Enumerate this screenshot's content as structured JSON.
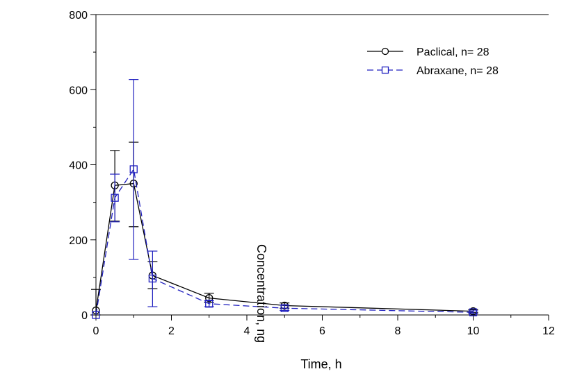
{
  "chart_data": {
    "type": "line",
    "xlabel": "Time, h",
    "ylabel": "Concentration, ng",
    "xlim": [
      0,
      12
    ],
    "ylim": [
      0,
      800
    ],
    "x_ticks": [
      0,
      2,
      4,
      6,
      8,
      10,
      12
    ],
    "y_ticks": [
      0,
      200,
      400,
      600,
      800
    ],
    "grid": false,
    "legend_position": "top-right",
    "series": [
      {
        "name": "Paclical, n= 28",
        "color": "#000000",
        "marker": "circle",
        "line_style": "solid",
        "x": [
          0,
          0.5,
          1,
          1.5,
          3,
          5,
          10
        ],
        "y": [
          12,
          345,
          350,
          105,
          45,
          25,
          10
        ],
        "error_upper": [
          68,
          438,
          460,
          142,
          58,
          32,
          14
        ],
        "error_lower": [
          0,
          250,
          235,
          70,
          33,
          18,
          6
        ]
      },
      {
        "name": "Abraxane, n= 28",
        "color": "#1f1fbf",
        "marker": "square",
        "line_style": "dashed",
        "x": [
          0,
          0.5,
          1,
          1.5,
          3,
          5,
          10
        ],
        "y": [
          0,
          312,
          388,
          97,
          30,
          18,
          7
        ],
        "error_upper": [
          0,
          375,
          627,
          170,
          38,
          26,
          11
        ],
        "error_lower": [
          0,
          248,
          148,
          22,
          22,
          12,
          3
        ]
      }
    ]
  }
}
